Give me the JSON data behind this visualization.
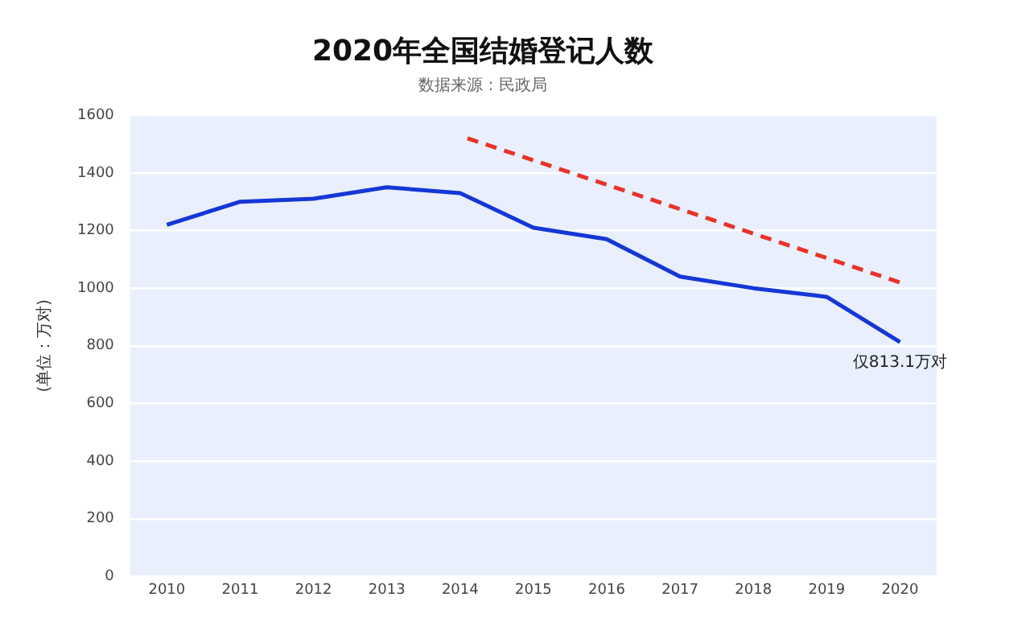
{
  "chart_data": {
    "type": "line",
    "title": "2020年全国结婚登记人数",
    "subtitle": "数据来源：民政局",
    "ylabel": "(单位：万对)",
    "x": [
      2010,
      2011,
      2012,
      2013,
      2014,
      2015,
      2016,
      2017,
      2018,
      2019,
      2020
    ],
    "series": [
      {
        "color": "#1537d6",
        "values": [
          1220,
          1300,
          1310,
          1350,
          1330,
          1210,
          1170,
          1040,
          1000,
          970,
          813.1
        ]
      },
      {
        "type": "line",
        "color": "#e8332a",
        "line_style": "dashed",
        "x": [
          2014.1,
          2020
        ],
        "values": [
          1520,
          1020
        ]
      }
    ],
    "xlim": [
      2009.5,
      2020.5
    ],
    "xticks": [
      2010,
      2011,
      2012,
      2013,
      2014,
      2015,
      2016,
      2017,
      2018,
      2019,
      2020
    ],
    "ylim": [
      0,
      1600
    ],
    "yticks": [
      0,
      200,
      400,
      600,
      800,
      1000,
      1200,
      1400,
      1600
    ],
    "grid": "y",
    "legend": false,
    "marker": "none",
    "line_style": "solid",
    "annotations": [
      {
        "text": "仅813.1万对",
        "x": 2020,
        "y": 813.1
      }
    ]
  }
}
